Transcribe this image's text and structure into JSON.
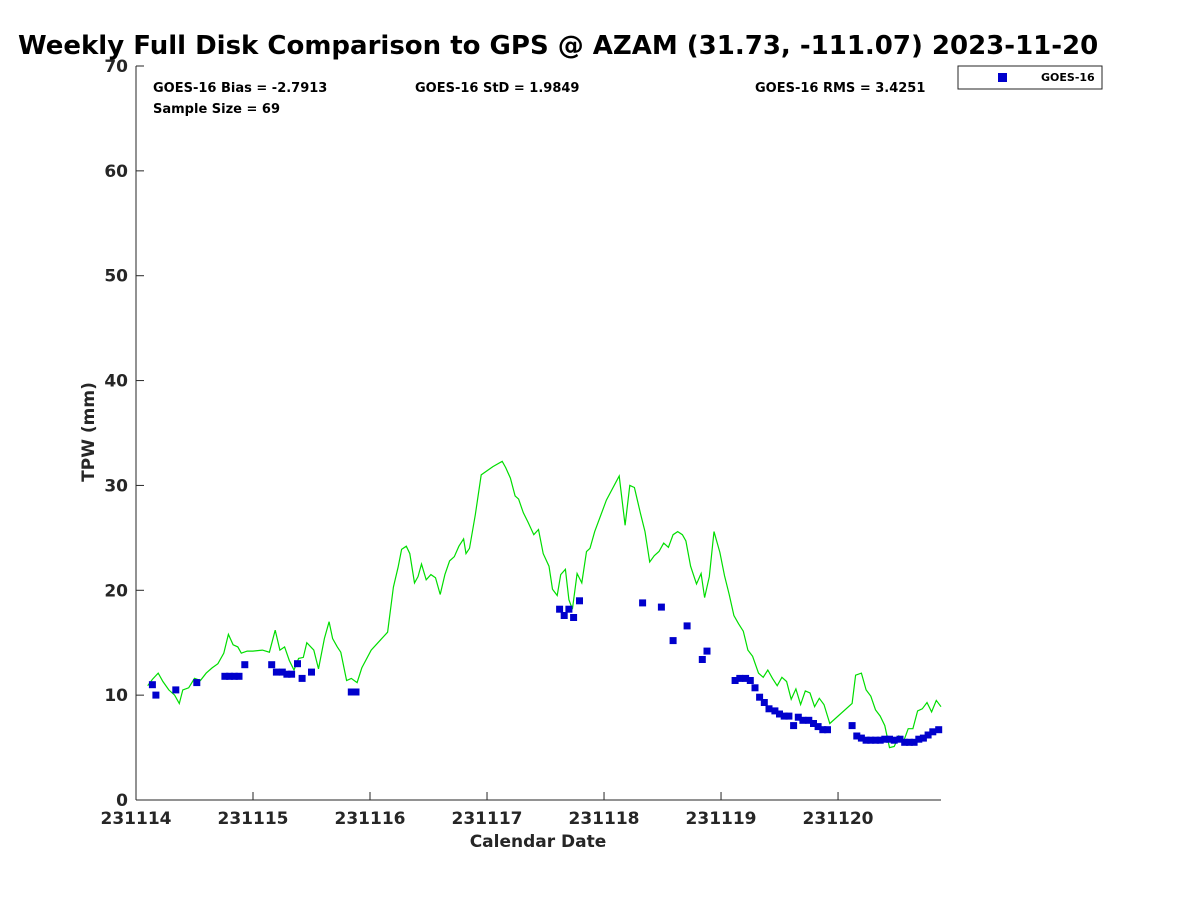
{
  "chart_data": {
    "type": "scatter",
    "title": "Weekly Full Disk Comparison to GPS @ AZAM (31.73, -111.07) 2023-11-20",
    "xlabel": "Calendar Date",
    "ylabel": "TPW (mm)",
    "xlim": [
      231114,
      231120.88
    ],
    "ylim": [
      0,
      70
    ],
    "x_ticks": [
      231114,
      231115,
      231116,
      231117,
      231118,
      231119,
      231120
    ],
    "x_tick_labels": [
      "231114",
      "231115",
      "231116",
      "231117",
      "231118",
      "231119",
      "231120"
    ],
    "y_ticks": [
      0,
      10,
      20,
      30,
      40,
      50,
      60,
      70
    ],
    "y_tick_labels": [
      "0",
      "10",
      "20",
      "30",
      "40",
      "50",
      "60",
      "70"
    ],
    "grid": false,
    "legend": {
      "placement": "outside-top-right",
      "entries": [
        "GOES-16"
      ]
    },
    "stats": {
      "bias": "GOES-16 Bias = -2.7913",
      "std": "GOES-16 StD = 1.9849",
      "rms": "GOES-16 RMS = 3.4251",
      "sample_size": "Sample Size = 69"
    },
    "colors": {
      "goes16": "#0000cc",
      "gps": "#00dd00",
      "axis": "#262626"
    },
    "series": [
      {
        "name": "GOES-16",
        "style": "square-markers",
        "color": "#0000cc",
        "points": [
          [
            231114.14,
            11.0
          ],
          [
            231114.17,
            10.0
          ],
          [
            231114.34,
            10.5
          ],
          [
            231114.52,
            11.2
          ],
          [
            231114.76,
            11.8
          ],
          [
            231114.8,
            11.8
          ],
          [
            231114.84,
            11.8
          ],
          [
            231114.88,
            11.8
          ],
          [
            231114.93,
            12.9
          ],
          [
            231115.16,
            12.9
          ],
          [
            231115.2,
            12.2
          ],
          [
            231115.25,
            12.2
          ],
          [
            231115.29,
            12.0
          ],
          [
            231115.33,
            12.0
          ],
          [
            231115.38,
            13.0
          ],
          [
            231115.42,
            11.6
          ],
          [
            231115.5,
            12.2
          ],
          [
            231115.84,
            10.3
          ],
          [
            231115.88,
            10.3
          ],
          [
            231117.62,
            18.2
          ],
          [
            231117.66,
            17.6
          ],
          [
            231117.7,
            18.2
          ],
          [
            231117.74,
            17.4
          ],
          [
            231117.79,
            19.0
          ],
          [
            231118.33,
            18.8
          ],
          [
            231118.49,
            18.4
          ],
          [
            231118.59,
            15.2
          ],
          [
            231118.71,
            16.6
          ],
          [
            231118.84,
            13.4
          ],
          [
            231118.88,
            14.2
          ],
          [
            231119.12,
            11.4
          ],
          [
            231119.16,
            11.6
          ],
          [
            231119.21,
            11.6
          ],
          [
            231119.25,
            11.4
          ],
          [
            231119.29,
            10.7
          ],
          [
            231119.33,
            9.8
          ],
          [
            231119.37,
            9.3
          ],
          [
            231119.41,
            8.7
          ],
          [
            231119.46,
            8.5
          ],
          [
            231119.5,
            8.2
          ],
          [
            231119.54,
            8.0
          ],
          [
            231119.58,
            8.0
          ],
          [
            231119.62,
            7.1
          ],
          [
            231119.66,
            7.9
          ],
          [
            231119.7,
            7.6
          ],
          [
            231119.75,
            7.6
          ],
          [
            231119.79,
            7.3
          ],
          [
            231119.83,
            7.0
          ],
          [
            231119.87,
            6.7
          ],
          [
            231119.91,
            6.7
          ],
          [
            231120.12,
            7.1
          ],
          [
            231120.16,
            6.1
          ],
          [
            231120.2,
            5.9
          ],
          [
            231120.24,
            5.7
          ],
          [
            231120.28,
            5.7
          ],
          [
            231120.32,
            5.7
          ],
          [
            231120.36,
            5.7
          ],
          [
            231120.4,
            5.8
          ],
          [
            231120.44,
            5.8
          ],
          [
            231120.48,
            5.7
          ],
          [
            231120.53,
            5.8
          ],
          [
            231120.57,
            5.5
          ],
          [
            231120.61,
            5.5
          ],
          [
            231120.65,
            5.5
          ],
          [
            231120.69,
            5.8
          ],
          [
            231120.73,
            5.9
          ],
          [
            231120.77,
            6.2
          ],
          [
            231120.81,
            6.5
          ],
          [
            231120.86,
            6.7
          ]
        ]
      },
      {
        "name": "",
        "style": "line",
        "color": "#00dd00",
        "points": [
          [
            231114.1,
            10.9
          ],
          [
            231114.14,
            11.5
          ],
          [
            231114.19,
            12.1
          ],
          [
            231114.23,
            11.3
          ],
          [
            231114.28,
            10.5
          ],
          [
            231114.33,
            10.0
          ],
          [
            231114.37,
            9.2
          ],
          [
            231114.4,
            10.5
          ],
          [
            231114.45,
            10.7
          ],
          [
            231114.5,
            11.6
          ],
          [
            231114.55,
            11.4
          ],
          [
            231114.6,
            12.1
          ],
          [
            231114.65,
            12.6
          ],
          [
            231114.7,
            13.0
          ],
          [
            231114.75,
            14.0
          ],
          [
            231114.79,
            15.8
          ],
          [
            231114.83,
            14.8
          ],
          [
            231114.87,
            14.6
          ],
          [
            231114.9,
            14.0
          ],
          [
            231114.95,
            14.2
          ],
          [
            231115.0,
            14.2
          ],
          [
            231115.08,
            14.3
          ],
          [
            231115.14,
            14.1
          ],
          [
            231115.19,
            16.2
          ],
          [
            231115.23,
            14.3
          ],
          [
            231115.27,
            14.6
          ],
          [
            231115.31,
            13.3
          ],
          [
            231115.35,
            12.4
          ],
          [
            231115.39,
            13.5
          ],
          [
            231115.43,
            13.6
          ],
          [
            231115.46,
            15.0
          ],
          [
            231115.52,
            14.3
          ],
          [
            231115.56,
            12.5
          ],
          [
            231115.61,
            15.4
          ],
          [
            231115.65,
            17.0
          ],
          [
            231115.68,
            15.4
          ],
          [
            231115.72,
            14.6
          ],
          [
            231115.75,
            14.1
          ],
          [
            231115.8,
            11.4
          ],
          [
            231115.84,
            11.6
          ],
          [
            231115.89,
            11.2
          ],
          [
            231115.93,
            12.6
          ],
          [
            231116.01,
            14.3
          ],
          [
            231116.15,
            16.0
          ],
          [
            231116.2,
            20.3
          ],
          [
            231116.24,
            22.2
          ],
          [
            231116.27,
            23.9
          ],
          [
            231116.31,
            24.2
          ],
          [
            231116.34,
            23.5
          ],
          [
            231116.38,
            20.7
          ],
          [
            231116.41,
            21.3
          ],
          [
            231116.44,
            22.5
          ],
          [
            231116.48,
            21.0
          ],
          [
            231116.52,
            21.5
          ],
          [
            231116.56,
            21.2
          ],
          [
            231116.6,
            19.6
          ],
          [
            231116.64,
            21.5
          ],
          [
            231116.68,
            22.8
          ],
          [
            231116.72,
            23.2
          ],
          [
            231116.76,
            24.2
          ],
          [
            231116.8,
            24.9
          ],
          [
            231116.82,
            23.5
          ],
          [
            231116.85,
            24.0
          ],
          [
            231116.9,
            27.2
          ],
          [
            231116.95,
            31.0
          ],
          [
            231117.05,
            31.8
          ],
          [
            231117.13,
            32.3
          ],
          [
            231117.16,
            31.7
          ],
          [
            231117.2,
            30.7
          ],
          [
            231117.24,
            29.0
          ],
          [
            231117.27,
            28.7
          ],
          [
            231117.31,
            27.4
          ],
          [
            231117.35,
            26.5
          ],
          [
            231117.4,
            25.3
          ],
          [
            231117.44,
            25.8
          ],
          [
            231117.48,
            23.5
          ],
          [
            231117.53,
            22.3
          ],
          [
            231117.56,
            20.1
          ],
          [
            231117.6,
            19.5
          ],
          [
            231117.63,
            21.5
          ],
          [
            231117.67,
            22.0
          ],
          [
            231117.7,
            19.1
          ],
          [
            231117.73,
            18.2
          ],
          [
            231117.77,
            21.6
          ],
          [
            231117.81,
            20.7
          ],
          [
            231117.85,
            23.7
          ],
          [
            231117.88,
            24.0
          ],
          [
            231117.92,
            25.6
          ],
          [
            231118.02,
            28.6
          ],
          [
            231118.13,
            30.9
          ],
          [
            231118.18,
            26.2
          ],
          [
            231118.22,
            30.0
          ],
          [
            231118.26,
            29.8
          ],
          [
            231118.31,
            27.4
          ],
          [
            231118.35,
            25.6
          ],
          [
            231118.39,
            22.7
          ],
          [
            231118.43,
            23.3
          ],
          [
            231118.47,
            23.7
          ],
          [
            231118.51,
            24.5
          ],
          [
            231118.55,
            24.1
          ],
          [
            231118.59,
            25.3
          ],
          [
            231118.63,
            25.6
          ],
          [
            231118.67,
            25.3
          ],
          [
            231118.7,
            24.7
          ],
          [
            231118.74,
            22.3
          ],
          [
            231118.79,
            20.6
          ],
          [
            231118.83,
            21.6
          ],
          [
            231118.86,
            19.3
          ],
          [
            231118.9,
            21.3
          ],
          [
            231118.94,
            25.6
          ],
          [
            231118.99,
            23.6
          ],
          [
            231119.03,
            21.4
          ],
          [
            231119.07,
            19.6
          ],
          [
            231119.11,
            17.6
          ],
          [
            231119.15,
            16.8
          ],
          [
            231119.19,
            16.1
          ],
          [
            231119.23,
            14.3
          ],
          [
            231119.27,
            13.7
          ],
          [
            231119.32,
            12.1
          ],
          [
            231119.36,
            11.7
          ],
          [
            231119.4,
            12.4
          ],
          [
            231119.44,
            11.6
          ],
          [
            231119.48,
            10.9
          ],
          [
            231119.52,
            11.7
          ],
          [
            231119.56,
            11.3
          ],
          [
            231119.6,
            9.6
          ],
          [
            231119.64,
            10.6
          ],
          [
            231119.68,
            9.1
          ],
          [
            231119.72,
            10.4
          ],
          [
            231119.76,
            10.2
          ],
          [
            231119.8,
            8.9
          ],
          [
            231119.84,
            9.7
          ],
          [
            231119.88,
            9.1
          ],
          [
            231119.93,
            7.3
          ],
          [
            231120.12,
            9.2
          ],
          [
            231120.15,
            11.9
          ],
          [
            231120.2,
            12.1
          ],
          [
            231120.24,
            10.5
          ],
          [
            231120.28,
            9.9
          ],
          [
            231120.32,
            8.6
          ],
          [
            231120.36,
            8.0
          ],
          [
            231120.4,
            7.1
          ],
          [
            231120.44,
            5.0
          ],
          [
            231120.48,
            5.1
          ],
          [
            231120.52,
            6.1
          ],
          [
            231120.56,
            5.6
          ],
          [
            231120.6,
            6.8
          ],
          [
            231120.64,
            6.8
          ],
          [
            231120.68,
            8.5
          ],
          [
            231120.72,
            8.7
          ],
          [
            231120.76,
            9.3
          ],
          [
            231120.8,
            8.4
          ],
          [
            231120.84,
            9.5
          ],
          [
            231120.88,
            8.9
          ]
        ]
      }
    ]
  }
}
